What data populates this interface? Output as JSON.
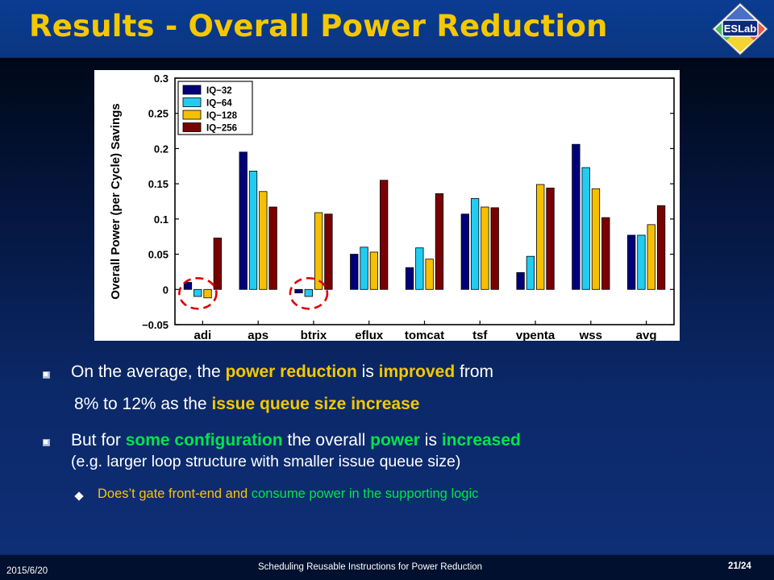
{
  "slide": {
    "title": "Results - Overall Power Reduction",
    "logo_text": "ESLab",
    "date": "2015/6/20",
    "footer_title": "Scheduling Reusable Instructions for Power Reduction",
    "page": "21/24"
  },
  "bullets": [
    {
      "parts": [
        {
          "text": "On the average, the ",
          "style": "white"
        },
        {
          "text": "power reduction",
          "style": "yellow"
        },
        {
          "text": " is ",
          "style": "white"
        },
        {
          "text": "improved",
          "style": "yellow"
        },
        {
          "text": " from",
          "style": "white"
        }
      ],
      "cont": [
        {
          "text": "8% to 12% as the ",
          "style": "white"
        },
        {
          "text": "issue queue size increase",
          "style": "yellow"
        }
      ]
    },
    {
      "parts": [
        {
          "text": "But for ",
          "style": "white"
        },
        {
          "text": "some configuration",
          "style": "green"
        },
        {
          "text": " the overall ",
          "style": "white"
        },
        {
          "text": "power",
          "style": "green"
        },
        {
          "text": " is ",
          "style": "white"
        },
        {
          "text": "increased",
          "style": "green"
        }
      ],
      "cont": [
        {
          "text": "(e.g. larger loop structure with smaller issue queue size)",
          "style": "white"
        }
      ],
      "sub": [
        {
          "text": "Does’t gate front-end and ",
          "style": "yellow-plain"
        },
        {
          "text": "consume power in the supporting logic",
          "style": "green-plain"
        }
      ]
    }
  ],
  "colors": {
    "title": "#f4c800",
    "yellow": "#f4c800",
    "green": "#00e44c",
    "series": [
      "#00007a",
      "#22ccf0",
      "#f5c000",
      "#7a0000"
    ],
    "highlight_circle": "#e00000"
  },
  "chart_data": {
    "type": "bar",
    "ylabel": "Overall Power (per Cycle) Savings",
    "xlabel": "",
    "ylim": [
      -0.05,
      0.3
    ],
    "yticks": [
      "−0.05",
      "0",
      "0.05",
      "0.1",
      "0.15",
      "0.2",
      "0.25",
      "0.3"
    ],
    "legend_position": "top-left",
    "grid": false,
    "categories": [
      "adi",
      "aps",
      "btrix",
      "eflux",
      "tomcat",
      "tsf",
      "vpenta",
      "wss",
      "avg"
    ],
    "series": [
      {
        "name": "IQ−32",
        "values": [
          0.01,
          0.195,
          -0.005,
          0.05,
          0.031,
          0.107,
          0.024,
          0.206,
          0.077
        ]
      },
      {
        "name": "IQ−64",
        "values": [
          -0.01,
          0.168,
          -0.01,
          0.06,
          0.059,
          0.129,
          0.047,
          0.173,
          0.077
        ]
      },
      {
        "name": "IQ−128",
        "values": [
          -0.012,
          0.139,
          0.109,
          0.053,
          0.043,
          0.117,
          0.149,
          0.143,
          0.092
        ]
      },
      {
        "name": "IQ−256",
        "values": [
          0.073,
          0.117,
          0.107,
          0.155,
          0.136,
          0.116,
          0.144,
          0.102,
          0.119
        ]
      }
    ],
    "highlighted_categories": [
      "adi",
      "btrix"
    ]
  }
}
